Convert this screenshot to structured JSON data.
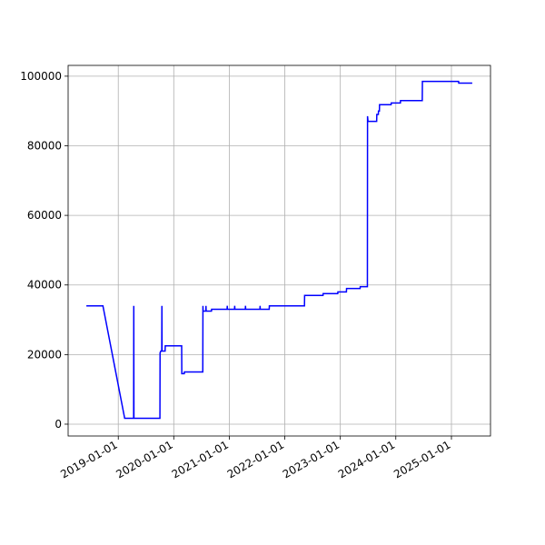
{
  "chart_data": {
    "type": "line",
    "color": "#0000ff",
    "grid": true,
    "x": [
      "2018-06-05",
      "2018-09-22",
      "2019-02-12",
      "2019-04-12",
      "2019-04-13",
      "2019-04-14",
      "2019-10-02",
      "2019-10-03",
      "2019-10-08",
      "2019-10-14",
      "2019-10-15",
      "2019-10-16",
      "2019-11-05",
      "2019-11-06",
      "2020-02-22",
      "2020-02-23",
      "2020-03-10",
      "2020-03-11",
      "2020-07-10",
      "2020-07-11",
      "2020-07-12",
      "2020-07-30",
      "2020-07-31",
      "2020-08-01",
      "2020-09-05",
      "2020-09-06",
      "2020-12-17",
      "2020-12-18",
      "2020-12-19",
      "2021-02-04",
      "2021-02-05",
      "2021-02-06",
      "2021-04-16",
      "2021-04-17",
      "2021-04-18",
      "2021-07-21",
      "2021-07-22",
      "2021-07-23",
      "2021-09-20",
      "2021-09-21",
      "2021-10-01",
      "2022-05-10",
      "2022-05-11",
      "2022-09-09",
      "2022-09-10",
      "2022-12-15",
      "2022-12-16",
      "2023-02-10",
      "2023-02-11",
      "2023-05-11",
      "2023-05-12",
      "2023-06-28",
      "2023-06-29",
      "2023-07-02",
      "2023-08-28",
      "2023-08-29",
      "2023-09-08",
      "2023-09-09",
      "2023-09-15",
      "2023-09-16",
      "2023-12-01",
      "2023-12-02",
      "2024-01-31",
      "2024-02-01",
      "2024-06-23",
      "2024-06-24",
      "2025-02-17",
      "2025-02-18",
      "2025-05-18"
    ],
    "values": [
      34000,
      34000,
      1700,
      1700,
      34000,
      1700,
      1700,
      20500,
      21000,
      21000,
      34000,
      21000,
      21000,
      22500,
      22500,
      14500,
      14500,
      15000,
      15000,
      34000,
      32500,
      32500,
      34000,
      32500,
      32500,
      33000,
      33000,
      34000,
      33000,
      33000,
      34000,
      33000,
      33000,
      34000,
      33000,
      33000,
      34000,
      33000,
      33000,
      34000,
      34000,
      34000,
      37000,
      37000,
      37500,
      37500,
      38000,
      38000,
      39000,
      39000,
      39500,
      39500,
      88500,
      87000,
      87000,
      89000,
      89000,
      90000,
      90000,
      91800,
      91800,
      92300,
      92300,
      93000,
      93000,
      98500,
      98500,
      98000,
      98000
    ],
    "xlim": [
      "2018-02-05",
      "2025-09-15"
    ],
    "xticks": [
      "2019-01-01",
      "2020-01-01",
      "2021-01-01",
      "2022-01-01",
      "2023-01-01",
      "2024-01-01",
      "2025-01-01"
    ],
    "ylim": [
      -3400,
      103100
    ],
    "yticks": [
      0,
      20000,
      40000,
      60000,
      80000,
      100000
    ]
  }
}
